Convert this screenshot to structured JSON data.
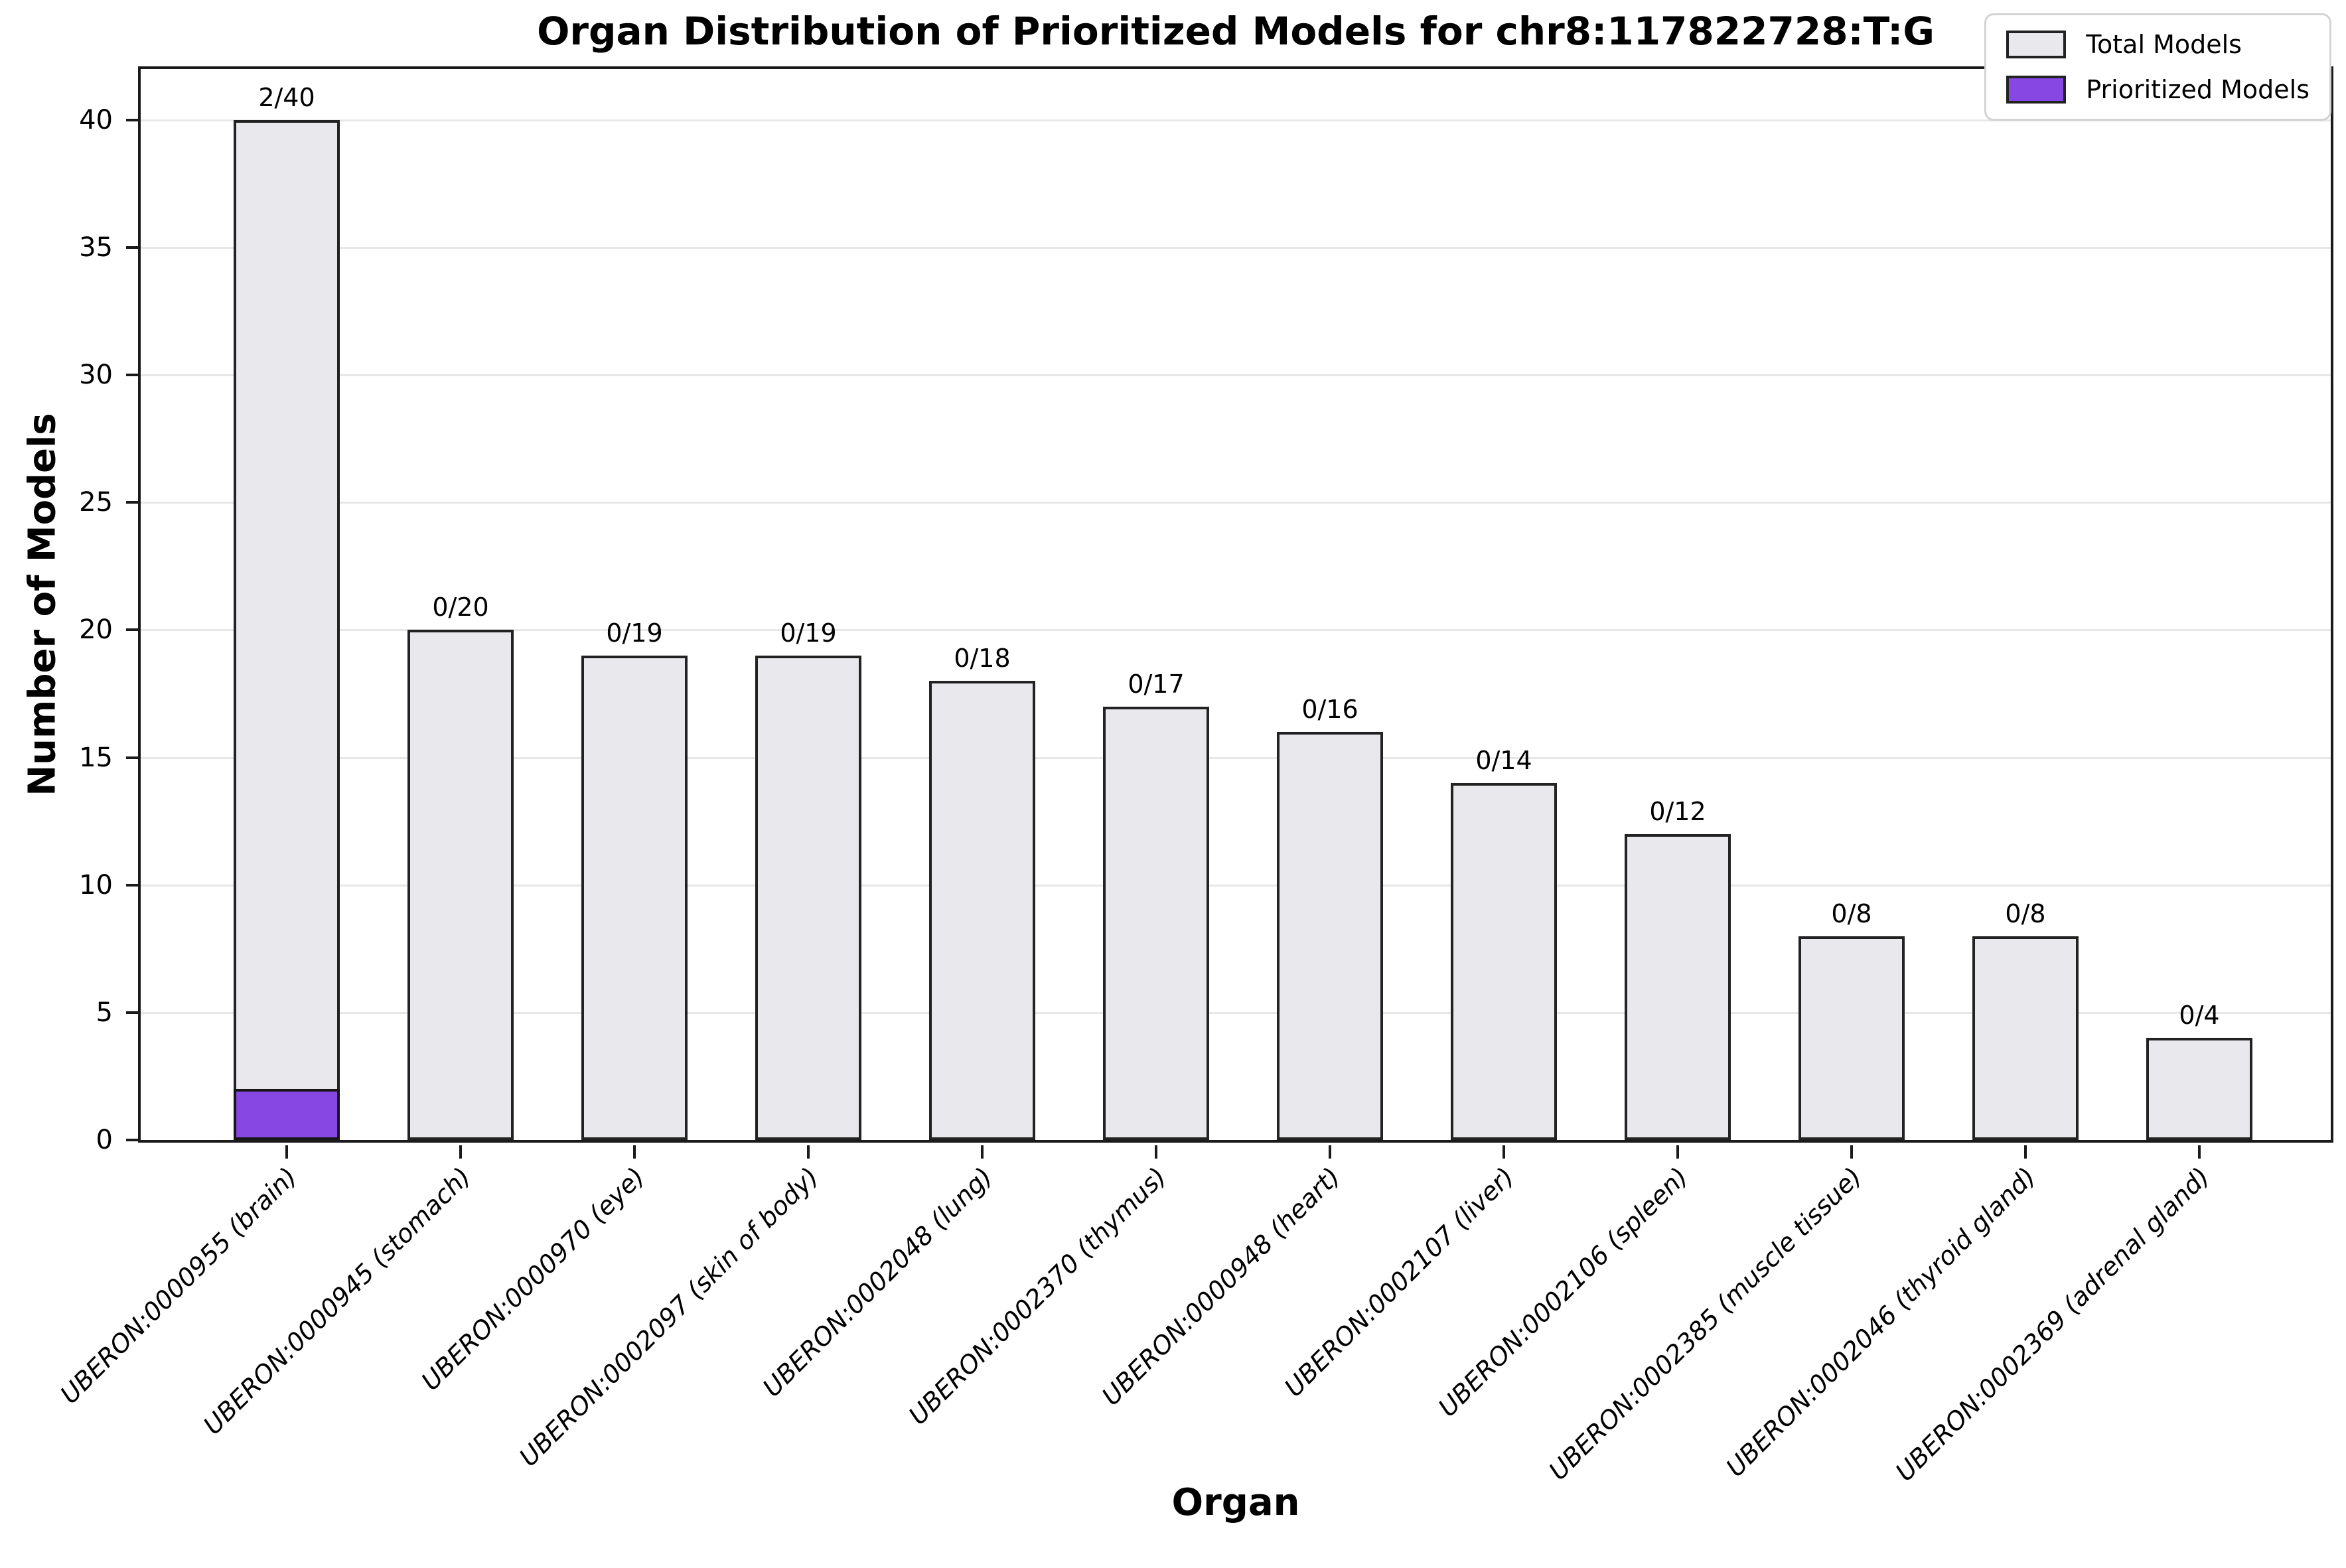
{
  "chart_data": {
    "type": "bar",
    "title": "Organ Distribution of Prioritized Models for chr8:117822728:T:G",
    "xlabel": "Organ",
    "ylabel": "Number of Models",
    "ylim": [
      0,
      42
    ],
    "yticks": [
      0,
      5,
      10,
      15,
      20,
      25,
      30,
      35,
      40
    ],
    "grid": true,
    "legend_position": "upper right",
    "categories": [
      "UBERON:0000955 (brain)",
      "UBERON:0000945 (stomach)",
      "UBERON:0000970 (eye)",
      "UBERON:0002097 (skin of body)",
      "UBERON:0002048 (lung)",
      "UBERON:0002370 (thymus)",
      "UBERON:0000948 (heart)",
      "UBERON:0002107 (liver)",
      "UBERON:0002106 (spleen)",
      "UBERON:0002385 (muscle tissue)",
      "UBERON:0002046 (thyroid gland)",
      "UBERON:0002369 (adrenal gland)"
    ],
    "series": [
      {
        "name": "Total Models",
        "color": "#e9e9ed",
        "values": [
          40,
          20,
          19,
          19,
          18,
          17,
          16,
          14,
          12,
          8,
          8,
          4
        ]
      },
      {
        "name": "Prioritized Models",
        "color": "#8647e2",
        "values": [
          2,
          0,
          0,
          0,
          0,
          0,
          0,
          0,
          0,
          0,
          0,
          0
        ]
      }
    ],
    "bar_labels": [
      "2/40",
      "0/20",
      "0/19",
      "0/19",
      "0/18",
      "0/17",
      "0/16",
      "0/14",
      "0/12",
      "0/8",
      "0/8",
      "0/4"
    ],
    "colors": {
      "bar_fill": "#e9e9ed",
      "prioritized_fill": "#8647e2",
      "bar_edge": "#222222",
      "axis": "#1a1a1a",
      "grid": "#e7e7e7",
      "text": "#000000",
      "legend_border": "#d3d3d3",
      "background": "#ffffff"
    }
  }
}
